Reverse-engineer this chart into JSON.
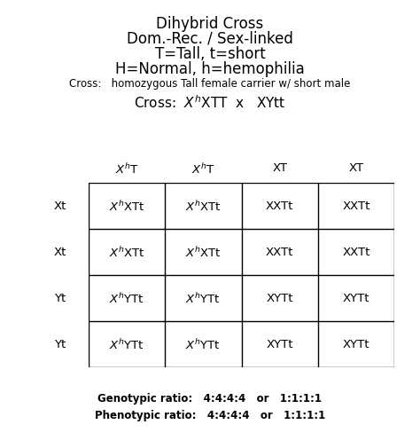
{
  "title_lines": [
    "Dihybrid Cross",
    "Dom.-Rec. / Sex-linked",
    "T=Tall, t=short",
    "H=Normal, h=hemophilia"
  ],
  "cross_line1": "Cross:   homozygous Tall female carrier w/ short male",
  "cross_line2": "Cross:  $X^{h}$XTT  x   XYtt",
  "col_headers": [
    "$X^{h}$T",
    "$X^{h}$T",
    "XT",
    "XT"
  ],
  "row_headers": [
    "Xt",
    "Xt",
    "Yt",
    "Yt"
  ],
  "cells": [
    [
      "$X^{h}$XTt",
      "$X^{h}$XTt",
      "XXTt",
      "XXTt"
    ],
    [
      "$X^{h}$XTt",
      "$X^{h}$XTt",
      "XXTt",
      "XXTt"
    ],
    [
      "$X^{h}$YTt",
      "$X^{h}$YTt",
      "XYTt",
      "XYTt"
    ],
    [
      "$X^{h}$YTt",
      "$X^{h}$YTt",
      "XYTt",
      "XYTt"
    ]
  ],
  "ratio_line1": "Genotypic ratio:   4:4:4:4   or   1:1:1:1",
  "ratio_line2": "Phenotypic ratio:   4:4:4:4   or   1:1:1:1",
  "bg_color": "#ffffff",
  "text_color": "#000000",
  "grid_color": "#000000",
  "title_fontsize": 12,
  "cross1_fontsize": 8.5,
  "cross2_fontsize": 11,
  "header_fontsize": 9.5,
  "cell_fontsize": 9.5,
  "ratio_fontsize": 8.5,
  "fig_width": 4.74,
  "fig_height": 5.06
}
